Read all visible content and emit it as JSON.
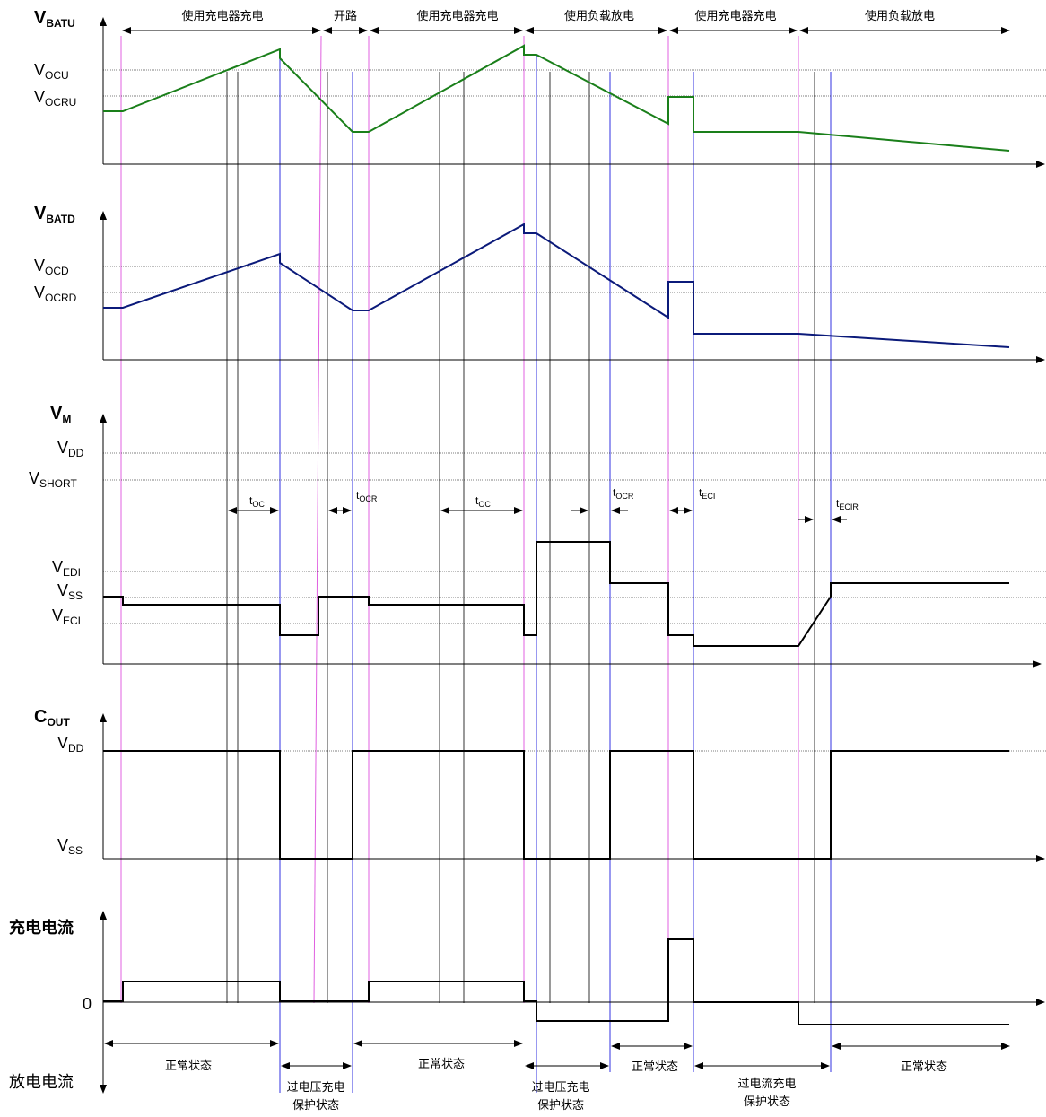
{
  "colors": {
    "vbatu": "#1a7f1a",
    "vbatd": "#0b1a7a",
    "magenta": "#e060e0",
    "blue": "#3030e0",
    "black": "#000000"
  },
  "top_phases": [
    "使用充电器充电",
    "开路",
    "使用充电器充电",
    "使用负载放电",
    "使用充电器充电",
    "使用负载放电"
  ],
  "vbatu": {
    "name_main": "V",
    "name_sub": "BATU",
    "ocu_main": "V",
    "ocu_sub": "OCU",
    "ocru_main": "V",
    "ocru_sub": "OCRU"
  },
  "vbatd": {
    "name_main": "V",
    "name_sub": "BATD",
    "ocd_main": "V",
    "ocd_sub": "OCD",
    "ocrd_main": "V",
    "ocrd_sub": "OCRD"
  },
  "vm": {
    "name_main": "V",
    "name_sub": "M",
    "vdd_main": "V",
    "vdd_sub": "DD",
    "vshort_main": "V",
    "vshort_sub": "SHORT",
    "vedi_main": "V",
    "vedi_sub": "EDI",
    "vss_main": "V",
    "vss_sub": "SS",
    "veci_main": "V",
    "veci_sub": "ECI",
    "toc1_main": "t",
    "toc1_sub": "OC",
    "tocr1_main": "t",
    "tocr1_sub": "OCR",
    "toc2_main": "t",
    "toc2_sub": "OC",
    "tocr2_main": "t",
    "tocr2_sub": "OCR",
    "teci_main": "t",
    "teci_sub": "ECI",
    "tecir_main": "t",
    "tecir_sub": "ECIR"
  },
  "cout": {
    "name_main": "C",
    "name_sub": "OUT",
    "vdd_main": "V",
    "vdd_sub": "DD",
    "vss_main": "V",
    "vss_sub": "SS"
  },
  "current": {
    "charge_label": "充电电流",
    "zero": "0",
    "discharge_label": "放电电流"
  },
  "states": [
    {
      "line1": "正常状态",
      "line2": ""
    },
    {
      "line1": "过电压充电",
      "line2": "保护状态"
    },
    {
      "line1": "正常状态",
      "line2": ""
    },
    {
      "line1": "过电压充电",
      "line2": "保护状态"
    },
    {
      "line1": "正常状态",
      "line2": ""
    },
    {
      "line1": "过电流充电",
      "line2": "保护状态"
    },
    {
      "line1": "正常状态",
      "line2": ""
    }
  ]
}
